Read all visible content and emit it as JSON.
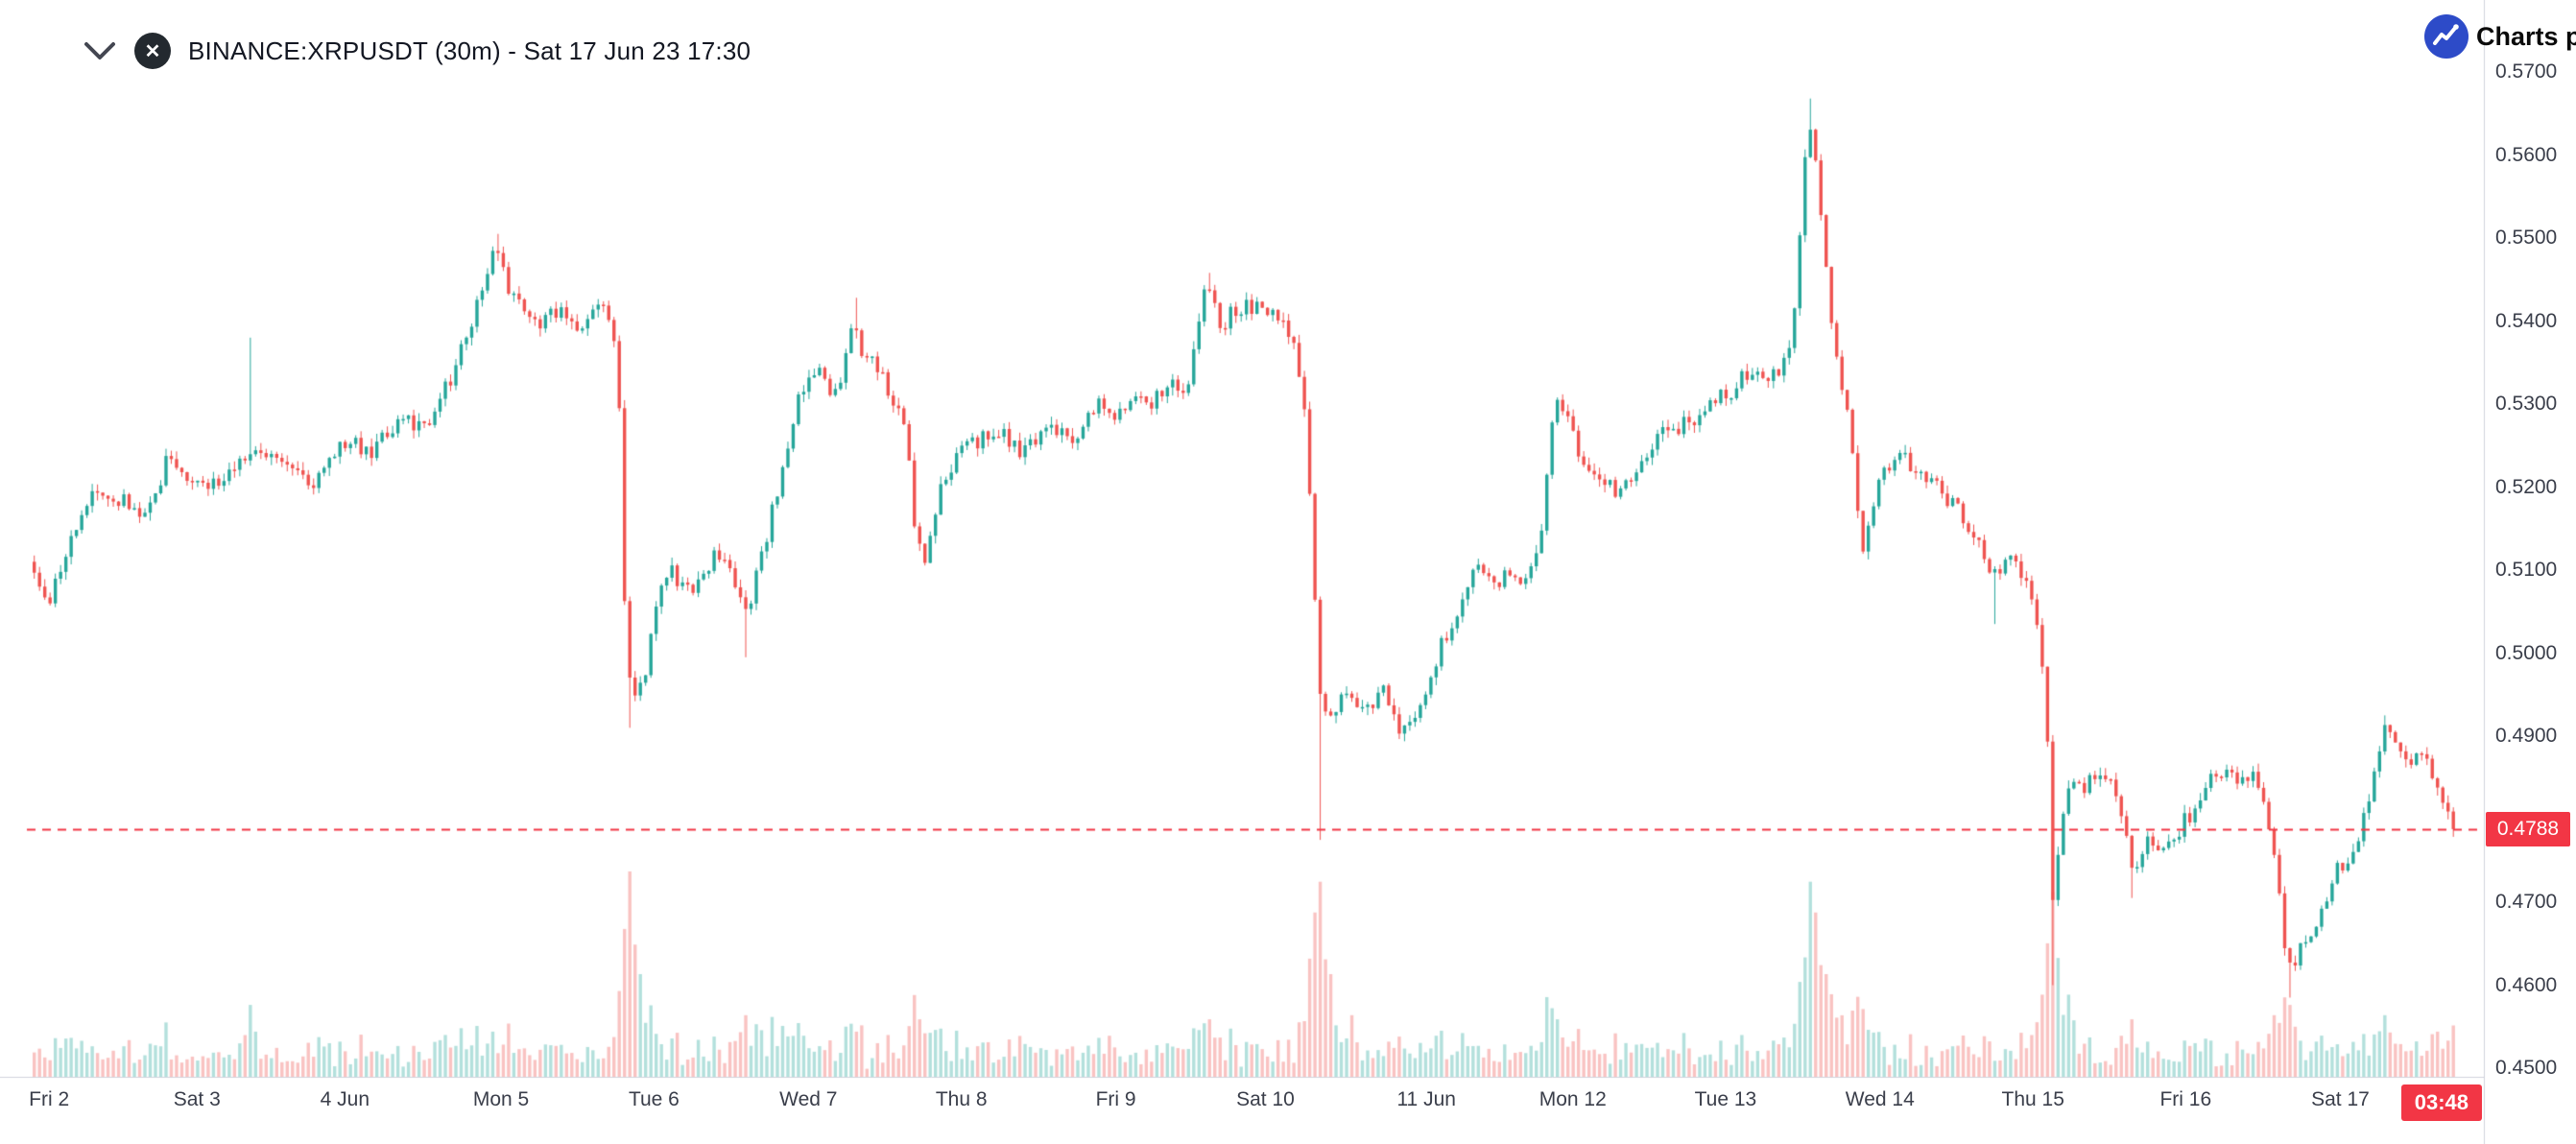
{
  "header": {
    "symbol_title": "BINANCE:XRPUSDT (30m) - Sat 17 Jun 23 17:30"
  },
  "branding": {
    "label": "Charts p"
  },
  "price_axis": {
    "labels": [
      "0.5700",
      "0.5600",
      "0.5500",
      "0.5400",
      "0.5300",
      "0.5200",
      "0.5100",
      "0.5000",
      "0.4900",
      "0.4700",
      "0.4600",
      "0.4500"
    ],
    "current_price_label": "0.4788"
  },
  "time_axis": {
    "labels": [
      {
        "label": "Fri 2",
        "f": 0.0068
      },
      {
        "label": "Sat 3",
        "f": 0.0678
      },
      {
        "label": "4 Jun",
        "f": 0.1288
      },
      {
        "label": "Mon 5",
        "f": 0.1932
      },
      {
        "label": "Tue 6",
        "f": 0.2563
      },
      {
        "label": "Wed 7",
        "f": 0.32
      },
      {
        "label": "Thu 8",
        "f": 0.3831
      },
      {
        "label": "Fri 9",
        "f": 0.4468
      },
      {
        "label": "Sat 10",
        "f": 0.5085
      },
      {
        "label": "11 Jun",
        "f": 0.5749
      },
      {
        "label": "Mon 12",
        "f": 0.6353
      },
      {
        "label": "Tue 13",
        "f": 0.6983
      },
      {
        "label": "Wed 14",
        "f": 0.762
      },
      {
        "label": "Thu 15",
        "f": 0.8251
      },
      {
        "label": "Fri 16",
        "f": 0.8881
      },
      {
        "label": "Sat 17",
        "f": 0.9519
      }
    ]
  },
  "countdown_label": "03:48",
  "colors": {
    "up": "#26a69a",
    "down": "#ef5350",
    "volume_up": "rgba(38,166,154,0.35)",
    "volume_down": "rgba(239,83,80,0.35)",
    "price_line": "#f23645",
    "badge_bg": "#f23645",
    "axis_line": "#d0d3dc",
    "title_text": "#131722",
    "axis_text": "#3a3e4a",
    "logo_blue": "#2d4bc8",
    "xrp_black": "#23292f"
  },
  "chart_data": {
    "type": "candlestick",
    "symbol": "BINANCE:XRPUSDT",
    "interval": "30m",
    "as_of": "Sat 17 Jun 23 17:30",
    "current_price": 0.4788,
    "price_axis_ticks": [
      0.57,
      0.56,
      0.55,
      0.54,
      0.53,
      0.52,
      0.51,
      0.5,
      0.49,
      0.47,
      0.46,
      0.45
    ],
    "visible_price_range": [
      0.449,
      0.5745
    ],
    "candle_count": 460,
    "noise_seed": 42,
    "noise_amplitude": 0.0011,
    "price_path": [
      [
        0.0,
        0.511
      ],
      [
        0.004,
        0.507
      ],
      [
        0.008,
        0.5055
      ],
      [
        0.014,
        0.512
      ],
      [
        0.027,
        0.5205
      ],
      [
        0.04,
        0.518
      ],
      [
        0.047,
        0.5165
      ],
      [
        0.058,
        0.524
      ],
      [
        0.068,
        0.5195
      ],
      [
        0.08,
        0.521
      ],
      [
        0.09,
        0.5235
      ],
      [
        0.105,
        0.5225
      ],
      [
        0.118,
        0.5205
      ],
      [
        0.13,
        0.5255
      ],
      [
        0.142,
        0.5245
      ],
      [
        0.155,
        0.5285
      ],
      [
        0.163,
        0.527
      ],
      [
        0.175,
        0.534
      ],
      [
        0.186,
        0.543
      ],
      [
        0.191,
        0.549
      ],
      [
        0.198,
        0.544
      ],
      [
        0.204,
        0.541
      ],
      [
        0.21,
        0.5385
      ],
      [
        0.217,
        0.5415
      ],
      [
        0.227,
        0.5385
      ],
      [
        0.236,
        0.5425
      ],
      [
        0.241,
        0.5395
      ],
      [
        0.2435,
        0.528
      ],
      [
        0.246,
        0.499
      ],
      [
        0.249,
        0.4935
      ],
      [
        0.254,
        0.4965
      ],
      [
        0.259,
        0.507
      ],
      [
        0.264,
        0.51
      ],
      [
        0.272,
        0.5075
      ],
      [
        0.284,
        0.5125
      ],
      [
        0.2915,
        0.5085
      ],
      [
        0.295,
        0.503
      ],
      [
        0.299,
        0.509
      ],
      [
        0.306,
        0.5165
      ],
      [
        0.318,
        0.532
      ],
      [
        0.326,
        0.534
      ],
      [
        0.332,
        0.5305
      ],
      [
        0.34,
        0.54
      ],
      [
        0.344,
        0.536
      ],
      [
        0.35,
        0.5345
      ],
      [
        0.357,
        0.529
      ],
      [
        0.362,
        0.527
      ],
      [
        0.3655,
        0.5135
      ],
      [
        0.369,
        0.511
      ],
      [
        0.376,
        0.5205
      ],
      [
        0.384,
        0.524
      ],
      [
        0.392,
        0.5255
      ],
      [
        0.4,
        0.527
      ],
      [
        0.41,
        0.524
      ],
      [
        0.42,
        0.528
      ],
      [
        0.43,
        0.5255
      ],
      [
        0.44,
        0.53
      ],
      [
        0.448,
        0.5285
      ],
      [
        0.456,
        0.532
      ],
      [
        0.463,
        0.5295
      ],
      [
        0.47,
        0.533
      ],
      [
        0.478,
        0.5315
      ],
      [
        0.4835,
        0.542
      ],
      [
        0.486,
        0.545
      ],
      [
        0.491,
        0.5395
      ],
      [
        0.498,
        0.5415
      ],
      [
        0.506,
        0.542
      ],
      [
        0.514,
        0.5405
      ],
      [
        0.521,
        0.5375
      ],
      [
        0.5265,
        0.528
      ],
      [
        0.5295,
        0.509
      ],
      [
        0.5325,
        0.494
      ],
      [
        0.538,
        0.4935
      ],
      [
        0.545,
        0.4955
      ],
      [
        0.552,
        0.4925
      ],
      [
        0.558,
        0.4965
      ],
      [
        0.565,
        0.4905
      ],
      [
        0.574,
        0.4935
      ],
      [
        0.582,
        0.501
      ],
      [
        0.59,
        0.5055
      ],
      [
        0.597,
        0.51
      ],
      [
        0.604,
        0.5085
      ],
      [
        0.611,
        0.51
      ],
      [
        0.617,
        0.5085
      ],
      [
        0.624,
        0.515
      ],
      [
        0.629,
        0.532
      ],
      [
        0.634,
        0.528
      ],
      [
        0.641,
        0.523
      ],
      [
        0.648,
        0.521
      ],
      [
        0.655,
        0.519
      ],
      [
        0.664,
        0.5225
      ],
      [
        0.672,
        0.526
      ],
      [
        0.681,
        0.5275
      ],
      [
        0.69,
        0.529
      ],
      [
        0.699,
        0.531
      ],
      [
        0.706,
        0.533
      ],
      [
        0.713,
        0.5345
      ],
      [
        0.72,
        0.5335
      ],
      [
        0.727,
        0.5365
      ],
      [
        0.7315,
        0.555
      ],
      [
        0.734,
        0.5655
      ],
      [
        0.7365,
        0.56
      ],
      [
        0.74,
        0.548
      ],
      [
        0.744,
        0.539
      ],
      [
        0.748,
        0.532
      ],
      [
        0.7525,
        0.523
      ],
      [
        0.756,
        0.512
      ],
      [
        0.762,
        0.52
      ],
      [
        0.769,
        0.524
      ],
      [
        0.776,
        0.5225
      ],
      [
        0.783,
        0.521
      ],
      [
        0.79,
        0.519
      ],
      [
        0.797,
        0.517
      ],
      [
        0.804,
        0.5135
      ],
      [
        0.81,
        0.5095
      ],
      [
        0.817,
        0.5115
      ],
      [
        0.824,
        0.508
      ],
      [
        0.829,
        0.501
      ],
      [
        0.832,
        0.494
      ],
      [
        0.8345,
        0.468
      ],
      [
        0.84,
        0.4845
      ],
      [
        0.847,
        0.4835
      ],
      [
        0.854,
        0.4855
      ],
      [
        0.861,
        0.4835
      ],
      [
        0.8675,
        0.474
      ],
      [
        0.874,
        0.4785
      ],
      [
        0.88,
        0.4765
      ],
      [
        0.888,
        0.4795
      ],
      [
        0.895,
        0.4815
      ],
      [
        0.901,
        0.4865
      ],
      [
        0.908,
        0.4845
      ],
      [
        0.915,
        0.4855
      ],
      [
        0.921,
        0.4835
      ],
      [
        0.927,
        0.4735
      ],
      [
        0.9295,
        0.466
      ],
      [
        0.932,
        0.4615
      ],
      [
        0.938,
        0.465
      ],
      [
        0.945,
        0.469
      ],
      [
        0.951,
        0.4735
      ],
      [
        0.958,
        0.4765
      ],
      [
        0.965,
        0.4815
      ],
      [
        0.972,
        0.492
      ],
      [
        0.979,
        0.4865
      ],
      [
        0.986,
        0.4875
      ],
      [
        0.992,
        0.4855
      ],
      [
        1.0,
        0.48
      ]
    ],
    "wick_events": [
      {
        "f": 0.0895,
        "price": 0.538,
        "side": "high"
      },
      {
        "f": 0.191,
        "price": 0.5505,
        "side": "high"
      },
      {
        "f": 0.2465,
        "price": 0.491,
        "side": "low"
      },
      {
        "f": 0.295,
        "price": 0.4995,
        "side": "low"
      },
      {
        "f": 0.34,
        "price": 0.5428,
        "side": "high"
      },
      {
        "f": 0.486,
        "price": 0.5458,
        "side": "high"
      },
      {
        "f": 0.5325,
        "price": 0.4775,
        "side": "low"
      },
      {
        "f": 0.734,
        "price": 0.5668,
        "side": "high"
      },
      {
        "f": 0.81,
        "price": 0.5035,
        "side": "low"
      },
      {
        "f": 0.8345,
        "price": 0.46,
        "side": "low"
      },
      {
        "f": 0.8675,
        "price": 0.4705,
        "side": "low"
      },
      {
        "f": 0.932,
        "price": 0.4585,
        "side": "low"
      },
      {
        "f": 0.972,
        "price": 0.4925,
        "side": "high"
      }
    ],
    "volume_spikes": [
      {
        "f": 0.0895,
        "h": 0.35
      },
      {
        "f": 0.19,
        "h": 0.22
      },
      {
        "f": 0.2435,
        "h": 0.6
      },
      {
        "f": 0.2465,
        "h": 1.0
      },
      {
        "f": 0.25,
        "h": 0.5
      },
      {
        "f": 0.295,
        "h": 0.3
      },
      {
        "f": 0.318,
        "h": 0.2
      },
      {
        "f": 0.34,
        "h": 0.22
      },
      {
        "f": 0.3655,
        "h": 0.28
      },
      {
        "f": 0.445,
        "h": 0.2
      },
      {
        "f": 0.486,
        "h": 0.28
      },
      {
        "f": 0.527,
        "h": 0.5
      },
      {
        "f": 0.53,
        "h": 0.8
      },
      {
        "f": 0.5325,
        "h": 0.95
      },
      {
        "f": 0.537,
        "h": 0.5
      },
      {
        "f": 0.545,
        "h": 0.3
      },
      {
        "f": 0.58,
        "h": 0.2
      },
      {
        "f": 0.629,
        "h": 0.28
      },
      {
        "f": 0.7315,
        "h": 0.5
      },
      {
        "f": 0.734,
        "h": 0.95
      },
      {
        "f": 0.7365,
        "h": 0.8
      },
      {
        "f": 0.74,
        "h": 0.5
      },
      {
        "f": 0.744,
        "h": 0.4
      },
      {
        "f": 0.756,
        "h": 0.33
      },
      {
        "f": 0.829,
        "h": 0.4
      },
      {
        "f": 0.832,
        "h": 0.65
      },
      {
        "f": 0.8345,
        "h": 0.9
      },
      {
        "f": 0.84,
        "h": 0.4
      },
      {
        "f": 0.8675,
        "h": 0.28
      },
      {
        "f": 0.927,
        "h": 0.3
      },
      {
        "f": 0.932,
        "h": 0.35
      },
      {
        "f": 0.945,
        "h": 0.2
      },
      {
        "f": 0.972,
        "h": 0.3
      },
      {
        "f": 0.993,
        "h": 0.22
      },
      {
        "f": 1.0,
        "h": 0.25
      }
    ]
  }
}
